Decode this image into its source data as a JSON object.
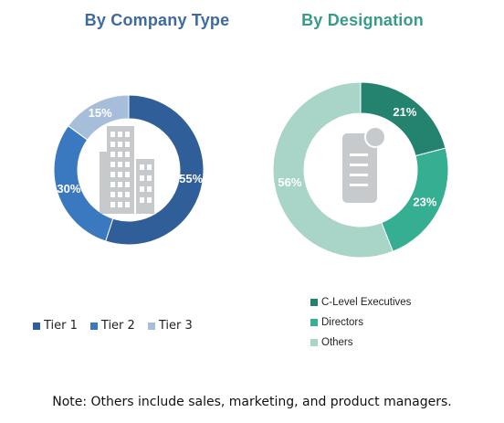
{
  "chart_data": [
    {
      "type": "pie",
      "title": "By Company Type",
      "title_color": "#3d6aa0",
      "categories": [
        "Tier 1",
        "Tier 2",
        "Tier 3"
      ],
      "values": [
        55,
        30,
        15
      ],
      "labels": [
        "55%",
        "30%",
        "15%"
      ],
      "colors": [
        "#2f5e98",
        "#3a78bf",
        "#a7bedb"
      ],
      "legend": "bottom-left",
      "icon": "office-building-icon"
    },
    {
      "type": "pie",
      "title": "By Designation",
      "title_color": "#3a9a8a",
      "categories": [
        "C-Level Executives",
        "Directors",
        "Others"
      ],
      "values": [
        21,
        23,
        56
      ],
      "labels": [
        "21%",
        "23%",
        "56%"
      ],
      "colors": [
        "#23836f",
        "#35ae92",
        "#a9d4c8"
      ],
      "legend": "bottom-right",
      "icon": "id-card-icon"
    }
  ],
  "note": "Note:  Others include sales, marketing, and product managers."
}
